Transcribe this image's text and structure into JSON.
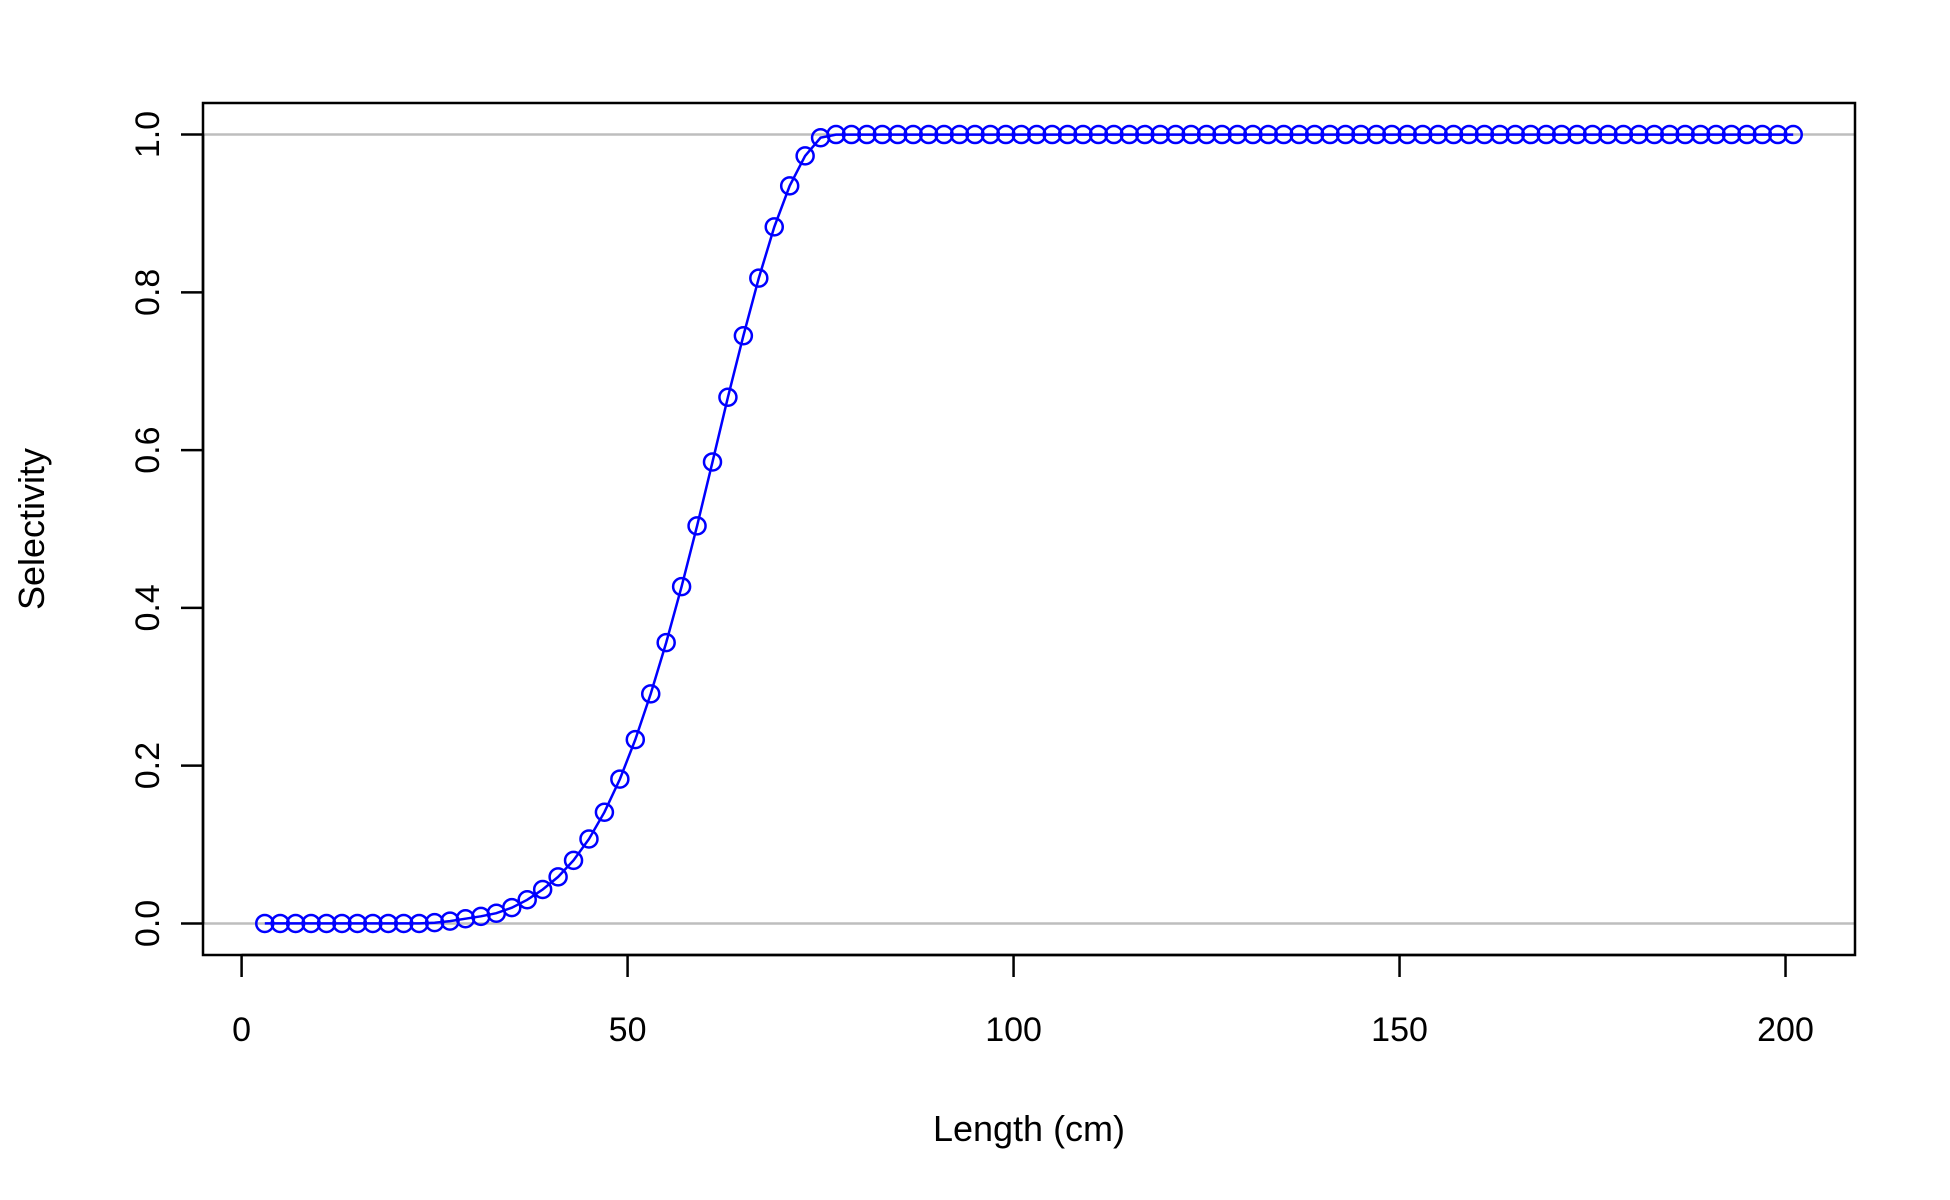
{
  "chart_data": {
    "type": "line",
    "xlabel": "Length (cm)",
    "ylabel": "Selectivity",
    "xlim": [
      -5,
      209
    ],
    "ylim": [
      -0.04,
      1.04
    ],
    "x_ticks": [
      0,
      50,
      100,
      150,
      200
    ],
    "x_tick_labels": [
      "0",
      "50",
      "100",
      "150",
      "200"
    ],
    "y_ticks": [
      0.0,
      0.2,
      0.4,
      0.6,
      0.8,
      1.0
    ],
    "y_tick_labels": [
      "0.0",
      "0.2",
      "0.4",
      "0.6",
      "0.8",
      "1.0"
    ],
    "reference_lines_y": [
      0,
      1
    ],
    "grid": false,
    "series": [
      {
        "color": "#0000ff",
        "marker": "open-circle",
        "x": [
          3,
          5,
          7,
          9,
          11,
          13,
          15,
          17,
          19,
          21,
          23,
          25,
          27,
          29,
          31,
          33,
          35,
          37,
          39,
          41,
          43,
          45,
          47,
          49,
          51,
          53,
          55,
          57,
          59,
          61,
          63,
          65,
          67,
          69,
          71,
          73,
          75,
          77,
          79,
          81,
          83,
          85,
          87,
          89,
          91,
          93,
          95,
          97,
          99,
          101,
          103,
          105,
          107,
          109,
          111,
          113,
          115,
          117,
          119,
          121,
          123,
          125,
          127,
          129,
          131,
          133,
          135,
          137,
          139,
          141,
          143,
          145,
          147,
          149,
          151,
          153,
          155,
          157,
          159,
          161,
          163,
          165,
          167,
          169,
          171,
          173,
          175,
          177,
          179,
          181,
          183,
          185,
          187,
          189,
          191,
          193,
          195,
          197,
          199,
          201
        ],
        "y": [
          0.0,
          0.0,
          0.0,
          0.0,
          0.0,
          0.0,
          0.0,
          0.0,
          0.0,
          0.0,
          0.0,
          0.001,
          0.003,
          0.006,
          0.009,
          0.013,
          0.02,
          0.03,
          0.043,
          0.059,
          0.08,
          0.107,
          0.141,
          0.183,
          0.233,
          0.291,
          0.356,
          0.427,
          0.504,
          0.585,
          0.667,
          0.745,
          0.818,
          0.883,
          0.935,
          0.973,
          0.996,
          1.0,
          1.0,
          1.0,
          1.0,
          1.0,
          1.0,
          1.0,
          1.0,
          1.0,
          1.0,
          1.0,
          1.0,
          1.0,
          1.0,
          1.0,
          1.0,
          1.0,
          1.0,
          1.0,
          1.0,
          1.0,
          1.0,
          1.0,
          1.0,
          1.0,
          1.0,
          1.0,
          1.0,
          1.0,
          1.0,
          1.0,
          1.0,
          1.0,
          1.0,
          1.0,
          1.0,
          1.0,
          1.0,
          1.0,
          1.0,
          1.0,
          1.0,
          1.0,
          1.0,
          1.0,
          1.0,
          1.0,
          1.0,
          1.0,
          1.0,
          1.0,
          1.0,
          1.0,
          1.0,
          1.0,
          1.0,
          1.0,
          1.0,
          1.0,
          1.0,
          1.0,
          1.0,
          1.0
        ]
      }
    ]
  }
}
